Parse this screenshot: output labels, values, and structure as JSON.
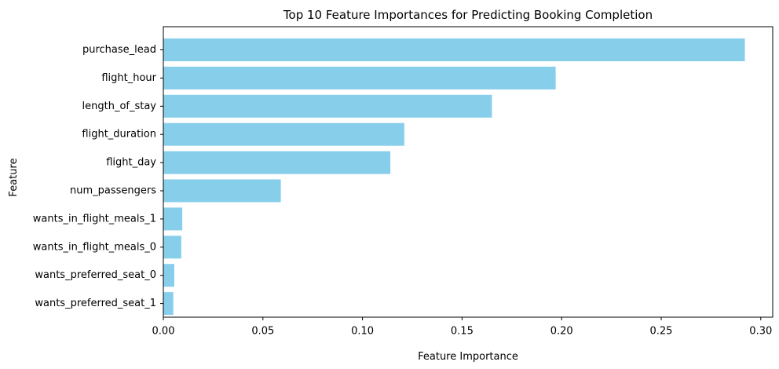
{
  "chart_data": {
    "type": "bar",
    "orientation": "horizontal",
    "title": "Top 10 Feature Importances for Predicting Booking Completion",
    "xlabel": "Feature Importance",
    "ylabel": "Feature",
    "categories": [
      "purchase_lead",
      "flight_hour",
      "length_of_stay",
      "flight_duration",
      "flight_day",
      "num_passengers",
      "wants_in_flight_meals_1",
      "wants_in_flight_meals_0",
      "wants_preferred_seat_0",
      "wants_preferred_seat_1"
    ],
    "values": [
      0.292,
      0.197,
      0.165,
      0.121,
      0.114,
      0.059,
      0.0095,
      0.009,
      0.0055,
      0.005
    ],
    "xlim": [
      0,
      0.306
    ],
    "xticks": [
      0.0,
      0.05,
      0.1,
      0.15,
      0.2,
      0.25,
      0.3
    ],
    "xtick_labels": [
      "0.00",
      "0.05",
      "0.10",
      "0.15",
      "0.20",
      "0.25",
      "0.30"
    ],
    "grid": false,
    "bar_color": "#87CEEB"
  }
}
